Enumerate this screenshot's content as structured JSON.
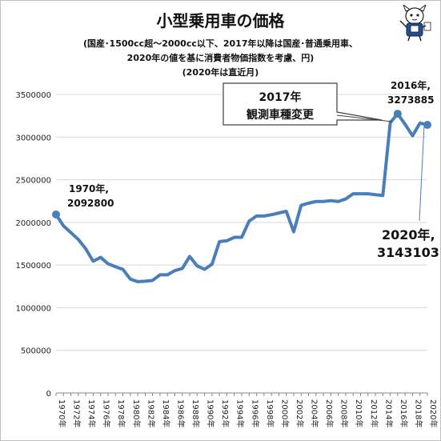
{
  "chart_data": {
    "type": "line",
    "title": "小型乗用車の価格",
    "subtitle": [
      "(国産･1500cc超～2000cc以下、2017年以降は国産･普通乗用車、",
      "2020年の値を基に消費者物価指数を考慮、円)",
      "(2020年は直近月)"
    ],
    "x": [
      1970,
      1971,
      1972,
      1973,
      1974,
      1975,
      1976,
      1977,
      1978,
      1979,
      1980,
      1981,
      1982,
      1983,
      1984,
      1985,
      1986,
      1987,
      1988,
      1989,
      1990,
      1991,
      1992,
      1993,
      1994,
      1995,
      1996,
      1997,
      1998,
      1999,
      2000,
      2001,
      2002,
      2003,
      2004,
      2005,
      2006,
      2007,
      2008,
      2009,
      2010,
      2011,
      2012,
      2013,
      2014,
      2015,
      2016,
      2017,
      2018,
      2019,
      2020
    ],
    "series": [
      {
        "values": [
          2092800,
          1960000,
          1880000,
          1800000,
          1690000,
          1545000,
          1590000,
          1515000,
          1480000,
          1450000,
          1335000,
          1305000,
          1310000,
          1320000,
          1385000,
          1385000,
          1435000,
          1460000,
          1600000,
          1490000,
          1450000,
          1510000,
          1775000,
          1785000,
          1825000,
          1825000,
          2015000,
          2075000,
          2075000,
          2090000,
          2110000,
          2130000,
          1890000,
          2200000,
          2225000,
          2245000,
          2245000,
          2255000,
          2245000,
          2275000,
          2335000,
          2335000,
          2335000,
          2325000,
          2315000,
          3170000,
          3273885,
          3150000,
          3015000,
          3165000,
          3143103
        ],
        "color": "#4a7ebb"
      }
    ],
    "ylim": [
      0,
      3500000
    ],
    "yticks": [
      "0",
      "500000",
      "1000000",
      "1500000",
      "2000000",
      "2500000",
      "3000000",
      "3500000"
    ],
    "xtick_labels": [
      "1970年",
      "1972年",
      "1974年",
      "1976年",
      "1978年",
      "1980年",
      "1982年",
      "1984年",
      "1986年",
      "1988年",
      "1990年",
      "1992年",
      "1994年",
      "1996年",
      "1998年",
      "2000年",
      "2002年",
      "2004年",
      "2006年",
      "2008年",
      "2010年",
      "2012年",
      "2014年",
      "2016年",
      "2018年",
      "2020年"
    ],
    "grid": true,
    "annotations": {
      "a1970": [
        "1970年,",
        "2092800"
      ],
      "a2016": [
        "2016年,",
        "3273885"
      ],
      "a2020": [
        "2020年,",
        "3143103"
      ],
      "callout": [
        "2017年",
        "観測車種変更"
      ]
    }
  }
}
